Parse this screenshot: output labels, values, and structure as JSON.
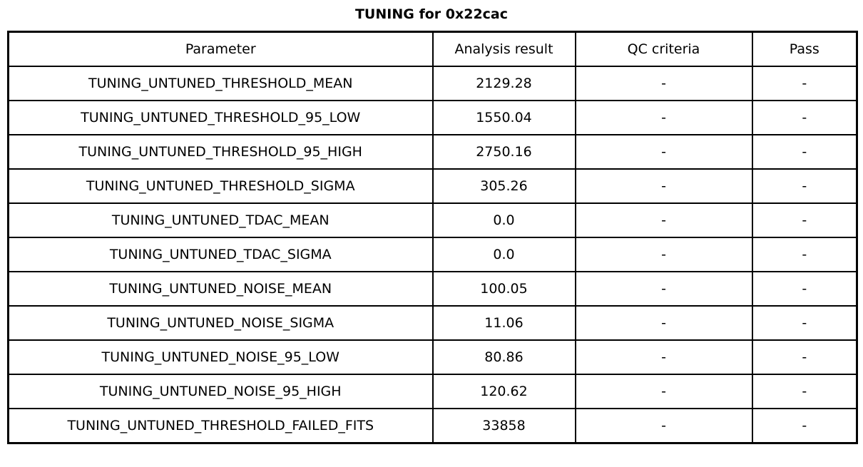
{
  "chart_data": {
    "type": "table",
    "title": "TUNING for 0x22cac",
    "columns": [
      "Parameter",
      "Analysis result",
      "QC criteria",
      "Pass"
    ],
    "rows": [
      [
        "TUNING_UNTUNED_THRESHOLD_MEAN",
        "2129.28",
        "-",
        "-"
      ],
      [
        "TUNING_UNTUNED_THRESHOLD_95_LOW",
        "1550.04",
        "-",
        "-"
      ],
      [
        "TUNING_UNTUNED_THRESHOLD_95_HIGH",
        "2750.16",
        "-",
        "-"
      ],
      [
        "TUNING_UNTUNED_THRESHOLD_SIGMA",
        "305.26",
        "-",
        "-"
      ],
      [
        "TUNING_UNTUNED_TDAC_MEAN",
        "0.0",
        "-",
        "-"
      ],
      [
        "TUNING_UNTUNED_TDAC_SIGMA",
        "0.0",
        "-",
        "-"
      ],
      [
        "TUNING_UNTUNED_NOISE_MEAN",
        "100.05",
        "-",
        "-"
      ],
      [
        "TUNING_UNTUNED_NOISE_SIGMA",
        "11.06",
        "-",
        "-"
      ],
      [
        "TUNING_UNTUNED_NOISE_95_LOW",
        "80.86",
        "-",
        "-"
      ],
      [
        "TUNING_UNTUNED_NOISE_95_HIGH",
        "120.62",
        "-",
        "-"
      ],
      [
        "TUNING_UNTUNED_THRESHOLD_FAILED_FITS",
        "33858",
        "-",
        "-"
      ]
    ],
    "layout": {
      "grid": true,
      "text_color": "#000000",
      "border_color": "#000000",
      "background_color": "#ffffff"
    }
  }
}
